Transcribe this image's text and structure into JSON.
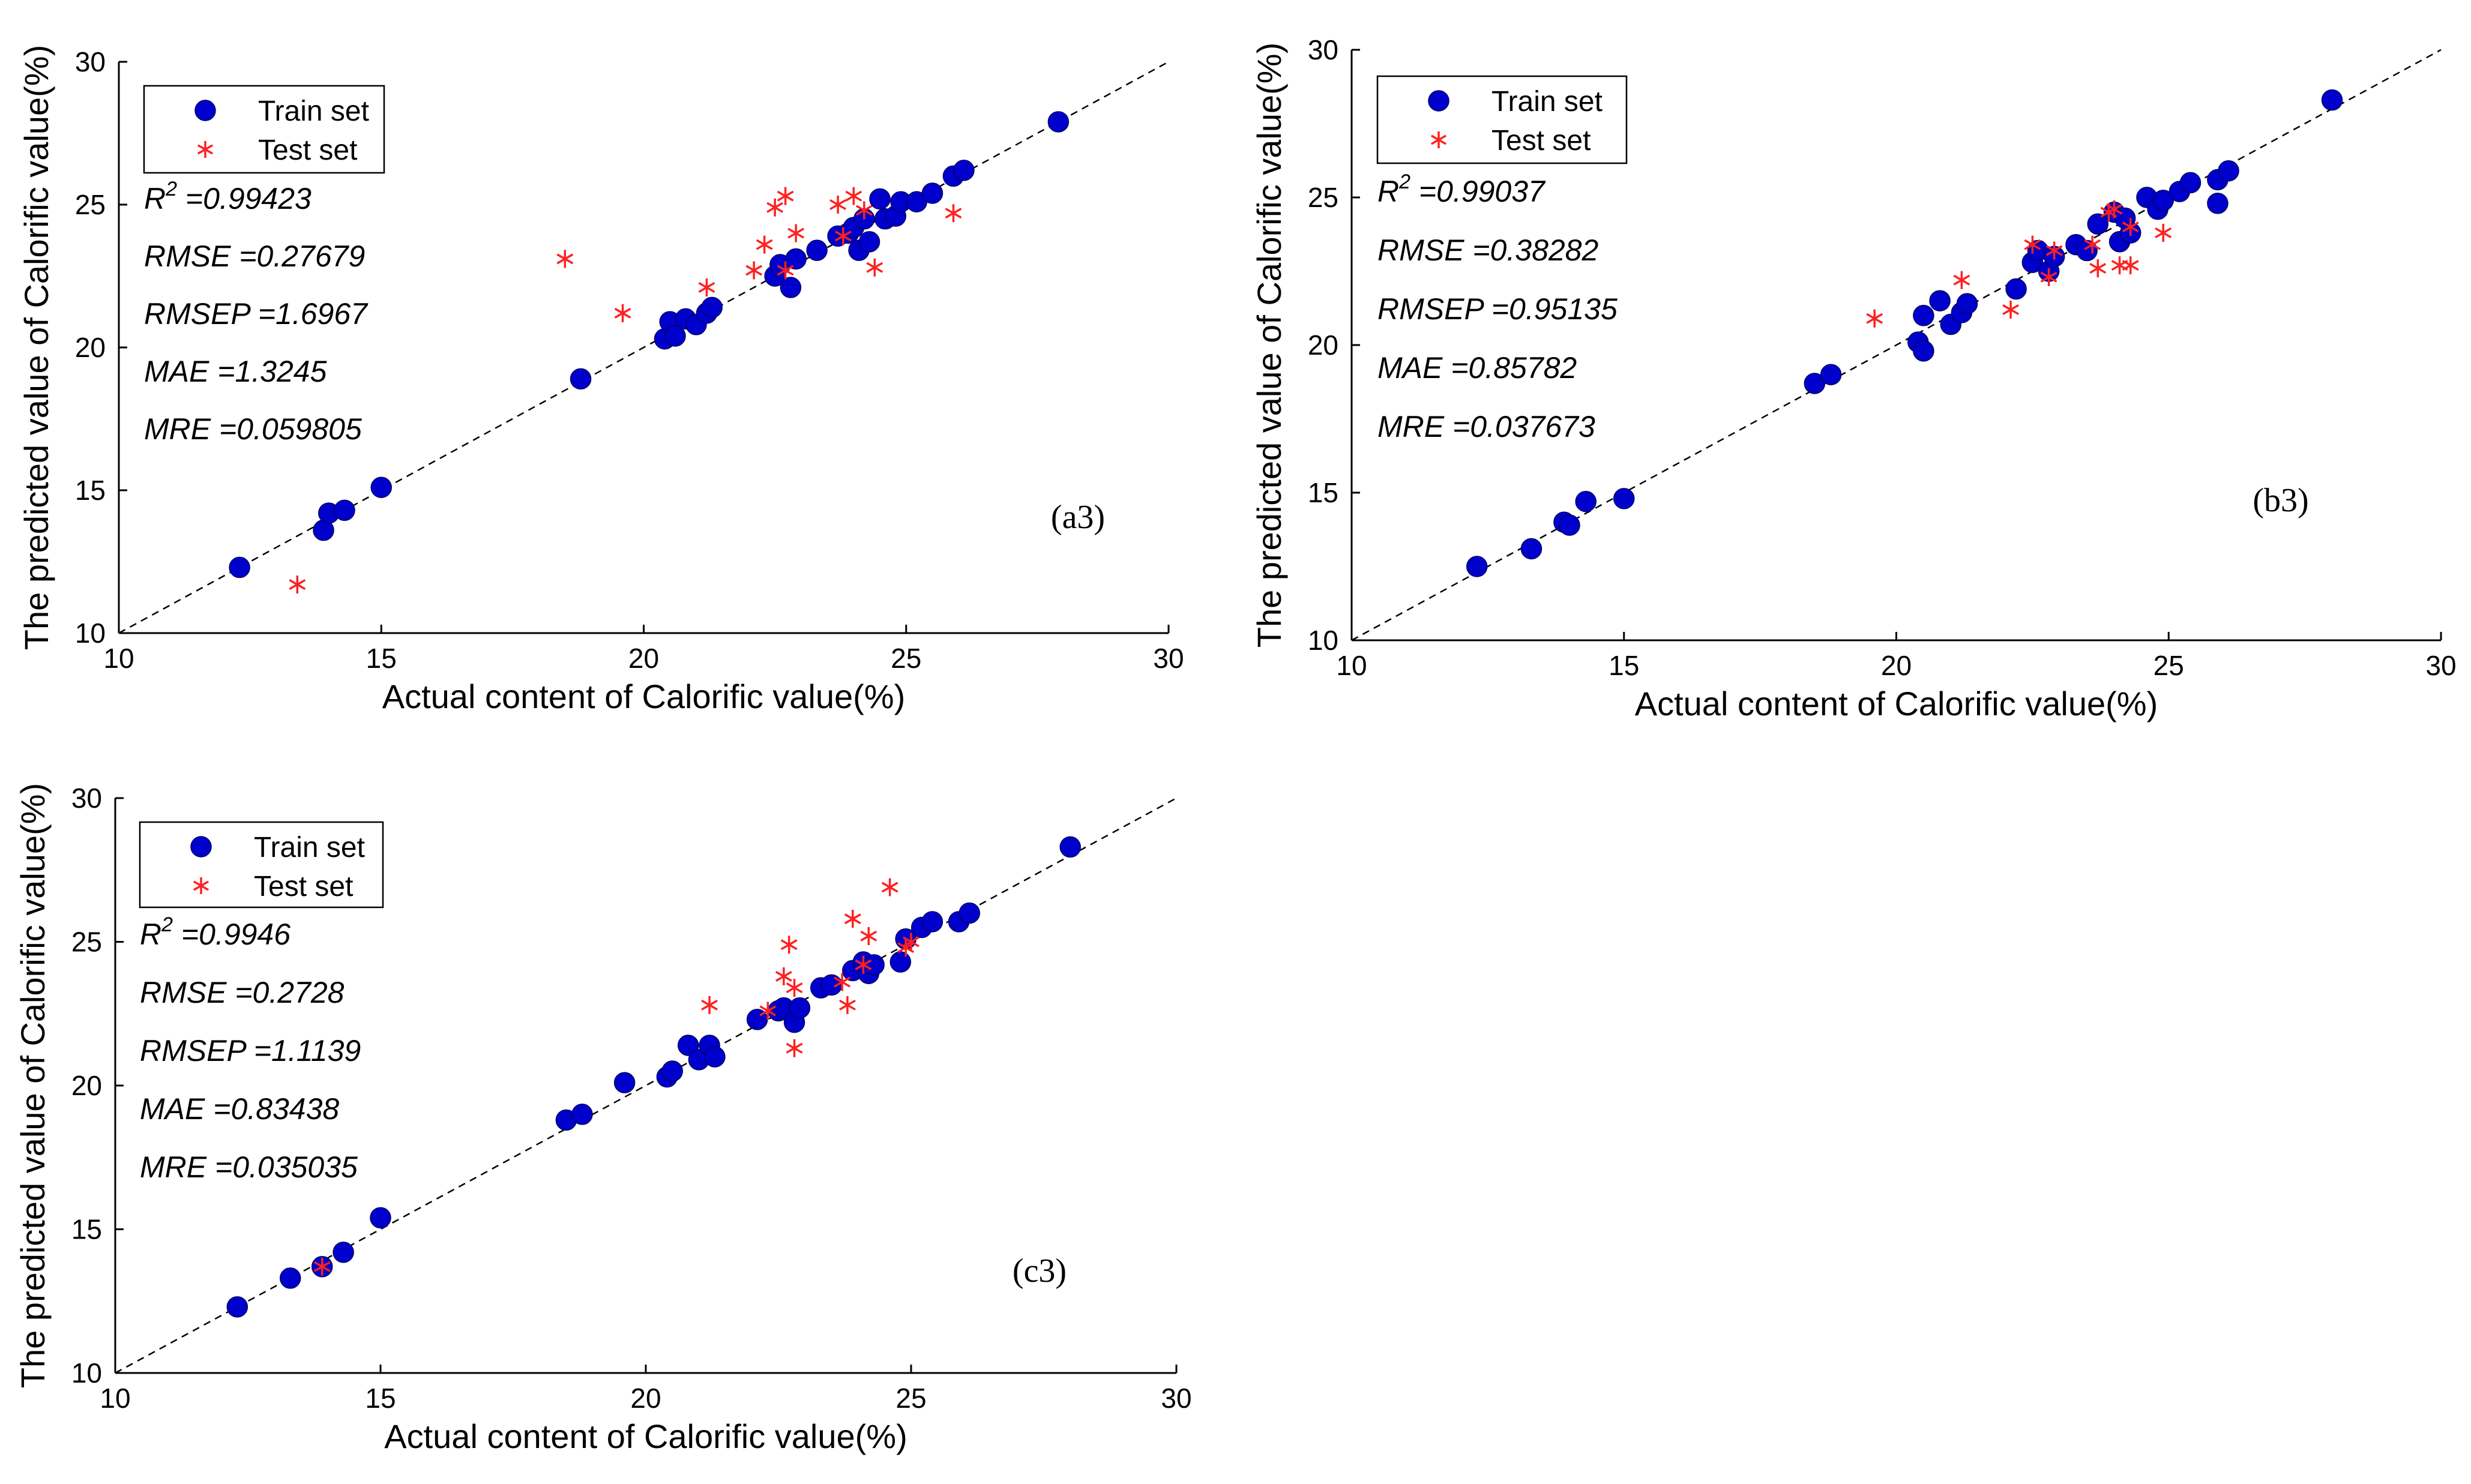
{
  "chart_data": [
    {
      "panel": "(a3)",
      "type": "scatter",
      "xlabel": "Actual content of Calorific value(%)",
      "ylabel": "The predicted value of Calorific value(%)",
      "xlim": [
        10,
        30
      ],
      "ylim": [
        10,
        30
      ],
      "xticks": [
        "10",
        "15",
        "20",
        "25",
        "30"
      ],
      "yticks": [
        "10",
        "15",
        "20",
        "25",
        "30"
      ],
      "legend": {
        "position": "top-left",
        "entries": [
          "Train set",
          "Test set"
        ]
      },
      "stats": [
        {
          "label": "R",
          "sup": "2",
          "value": " =0.99423"
        },
        {
          "label": "RMSE",
          "value": " =0.27679"
        },
        {
          "label": "RMSEP",
          "value": " =1.6967"
        },
        {
          "label": "MAE",
          "value": " =1.3245"
        },
        {
          "label": "MRE",
          "value": " =0.059805"
        }
      ],
      "series": [
        {
          "name": "Train set",
          "color": "#0000cc",
          "points": [
            [
              12.3,
              12.3
            ],
            [
              13.9,
              13.6
            ],
            [
              14.0,
              14.2
            ],
            [
              14.3,
              14.3
            ],
            [
              15.0,
              15.1
            ],
            [
              18.8,
              18.9
            ],
            [
              20.4,
              20.3
            ],
            [
              20.5,
              20.9
            ],
            [
              20.6,
              20.4
            ],
            [
              20.8,
              21.0
            ],
            [
              21.0,
              20.8
            ],
            [
              21.2,
              21.2
            ],
            [
              21.3,
              21.4
            ],
            [
              22.5,
              22.5
            ],
            [
              22.6,
              22.9
            ],
            [
              22.8,
              22.1
            ],
            [
              22.9,
              23.1
            ],
            [
              23.3,
              23.4
            ],
            [
              23.7,
              23.9
            ],
            [
              23.9,
              24.0
            ],
            [
              24.0,
              24.2
            ],
            [
              24.1,
              23.4
            ],
            [
              24.2,
              24.5
            ],
            [
              24.3,
              23.7
            ],
            [
              24.5,
              25.2
            ],
            [
              24.6,
              24.5
            ],
            [
              24.8,
              24.6
            ],
            [
              24.9,
              25.1
            ],
            [
              25.2,
              25.1
            ],
            [
              25.5,
              25.4
            ],
            [
              25.9,
              26.0
            ],
            [
              26.1,
              26.2
            ],
            [
              27.9,
              27.9
            ]
          ]
        },
        {
          "name": "Test set",
          "color": "#ff2020",
          "points": [
            [
              13.4,
              11.7
            ],
            [
              18.5,
              23.1
            ],
            [
              19.6,
              21.2
            ],
            [
              21.2,
              22.1
            ],
            [
              22.1,
              22.7
            ],
            [
              22.3,
              23.6
            ],
            [
              22.5,
              24.9
            ],
            [
              22.7,
              25.3
            ],
            [
              22.7,
              22.7
            ],
            [
              22.9,
              24.0
            ],
            [
              23.7,
              25.0
            ],
            [
              23.8,
              23.9
            ],
            [
              24.0,
              25.3
            ],
            [
              24.2,
              24.8
            ],
            [
              24.4,
              22.8
            ],
            [
              25.9,
              24.7
            ]
          ]
        }
      ]
    },
    {
      "panel": "(b3)",
      "type": "scatter",
      "xlabel": "Actual content of Calorific value(%)",
      "ylabel": "The predicted value of Calorific value(%)",
      "xlim": [
        10,
        30
      ],
      "ylim": [
        10,
        30
      ],
      "xticks": [
        "10",
        "15",
        "20",
        "25",
        "30"
      ],
      "yticks": [
        "10",
        "15",
        "20",
        "25",
        "30"
      ],
      "legend": {
        "position": "top-left",
        "entries": [
          "Train set",
          "Test set"
        ]
      },
      "stats": [
        {
          "label": "R",
          "sup": "2",
          "value": " =0.99037"
        },
        {
          "label": "RMSE",
          "value": " =0.38282"
        },
        {
          "label": "RMSEP",
          "value": " =0.95135"
        },
        {
          "label": "MAE",
          "value": " =0.85782"
        },
        {
          "label": "MRE",
          "value": " =0.037673"
        }
      ],
      "series": [
        {
          "name": "Train set",
          "color": "#0000cc",
          "points": [
            [
              12.3,
              12.5
            ],
            [
              13.3,
              13.1
            ],
            [
              13.9,
              14.0
            ],
            [
              14.0,
              13.9
            ],
            [
              14.3,
              14.7
            ],
            [
              15.0,
              14.8
            ],
            [
              18.5,
              18.7
            ],
            [
              18.8,
              19.0
            ],
            [
              20.4,
              20.1
            ],
            [
              20.5,
              19.8
            ],
            [
              20.5,
              21.0
            ],
            [
              20.8,
              21.5
            ],
            [
              21.0,
              20.7
            ],
            [
              21.2,
              21.1
            ],
            [
              21.3,
              21.4
            ],
            [
              22.2,
              21.9
            ],
            [
              22.5,
              22.8
            ],
            [
              22.6,
              23.2
            ],
            [
              22.8,
              22.5
            ],
            [
              22.9,
              23.0
            ],
            [
              23.3,
              23.4
            ],
            [
              23.5,
              23.2
            ],
            [
              23.7,
              24.1
            ],
            [
              24.0,
              24.5
            ],
            [
              24.1,
              23.5
            ],
            [
              24.2,
              24.3
            ],
            [
              24.3,
              23.8
            ],
            [
              24.6,
              25.0
            ],
            [
              24.8,
              24.6
            ],
            [
              24.9,
              24.9
            ],
            [
              25.2,
              25.2
            ],
            [
              25.4,
              25.5
            ],
            [
              25.9,
              25.6
            ],
            [
              25.9,
              24.8
            ],
            [
              26.1,
              25.9
            ],
            [
              28.0,
              28.3
            ]
          ]
        },
        {
          "name": "Test set",
          "color": "#ff2020",
          "points": [
            [
              19.6,
              20.9
            ],
            [
              22.1,
              21.2
            ],
            [
              22.5,
              23.4
            ],
            [
              22.8,
              22.3
            ],
            [
              22.9,
              23.2
            ],
            [
              23.6,
              23.4
            ],
            [
              23.7,
              22.6
            ],
            [
              23.9,
              24.5
            ],
            [
              24.0,
              24.6
            ],
            [
              24.1,
              22.7
            ],
            [
              24.3,
              24.0
            ],
            [
              24.3,
              22.7
            ],
            [
              24.9,
              23.8
            ],
            [
              21.2,
              22.2
            ]
          ]
        }
      ]
    },
    {
      "panel": "(c3)",
      "type": "scatter",
      "xlabel": "Actual content of Calorific value(%)",
      "ylabel": "The predicted value of Calorific value(%)",
      "xlim": [
        10,
        30
      ],
      "ylim": [
        10,
        30
      ],
      "xticks": [
        "10",
        "15",
        "20",
        "25",
        "30"
      ],
      "yticks": [
        "10",
        "15",
        "20",
        "25",
        "30"
      ],
      "legend": {
        "position": "top-left",
        "entries": [
          "Train set",
          "Test set"
        ]
      },
      "stats": [
        {
          "label": "R",
          "sup": "2",
          "value": " =0.9946"
        },
        {
          "label": "RMSE",
          "value": " =0.2728"
        },
        {
          "label": "RMSEP",
          "value": " =1.1139"
        },
        {
          "label": "MAE",
          "value": " =0.83438"
        },
        {
          "label": "MRE",
          "value": " =0.035035"
        }
      ],
      "series": [
        {
          "name": "Train set",
          "color": "#0000cc",
          "points": [
            [
              12.3,
              12.3
            ],
            [
              13.3,
              13.3
            ],
            [
              13.9,
              13.7
            ],
            [
              14.3,
              14.2
            ],
            [
              15.0,
              15.4
            ],
            [
              18.5,
              18.8
            ],
            [
              18.8,
              19.0
            ],
            [
              19.6,
              20.1
            ],
            [
              20.4,
              20.3
            ],
            [
              20.5,
              20.5
            ],
            [
              20.8,
              21.4
            ],
            [
              21.0,
              20.9
            ],
            [
              21.2,
              21.4
            ],
            [
              21.3,
              21.0
            ],
            [
              22.1,
              22.3
            ],
            [
              22.5,
              22.6
            ],
            [
              22.6,
              22.7
            ],
            [
              22.8,
              22.2
            ],
            [
              22.9,
              22.7
            ],
            [
              23.3,
              23.4
            ],
            [
              23.5,
              23.5
            ],
            [
              23.9,
              24.0
            ],
            [
              24.1,
              24.3
            ],
            [
              24.2,
              23.9
            ],
            [
              24.3,
              24.2
            ],
            [
              24.8,
              24.3
            ],
            [
              24.9,
              25.1
            ],
            [
              25.2,
              25.5
            ],
            [
              25.4,
              25.7
            ],
            [
              25.9,
              25.7
            ],
            [
              26.1,
              26.0
            ],
            [
              28.0,
              28.3
            ]
          ]
        },
        {
          "name": "Test set",
          "color": "#ff2020",
          "points": [
            [
              13.9,
              13.7
            ],
            [
              21.2,
              22.8
            ],
            [
              22.3,
              22.6
            ],
            [
              22.6,
              23.8
            ],
            [
              22.7,
              24.9
            ],
            [
              22.8,
              23.4
            ],
            [
              22.8,
              21.3
            ],
            [
              23.7,
              23.6
            ],
            [
              23.8,
              22.8
            ],
            [
              23.9,
              25.8
            ],
            [
              24.1,
              24.2
            ],
            [
              24.2,
              25.2
            ],
            [
              24.6,
              26.9
            ],
            [
              24.9,
              24.8
            ],
            [
              25.0,
              25.0
            ]
          ]
        }
      ]
    }
  ]
}
